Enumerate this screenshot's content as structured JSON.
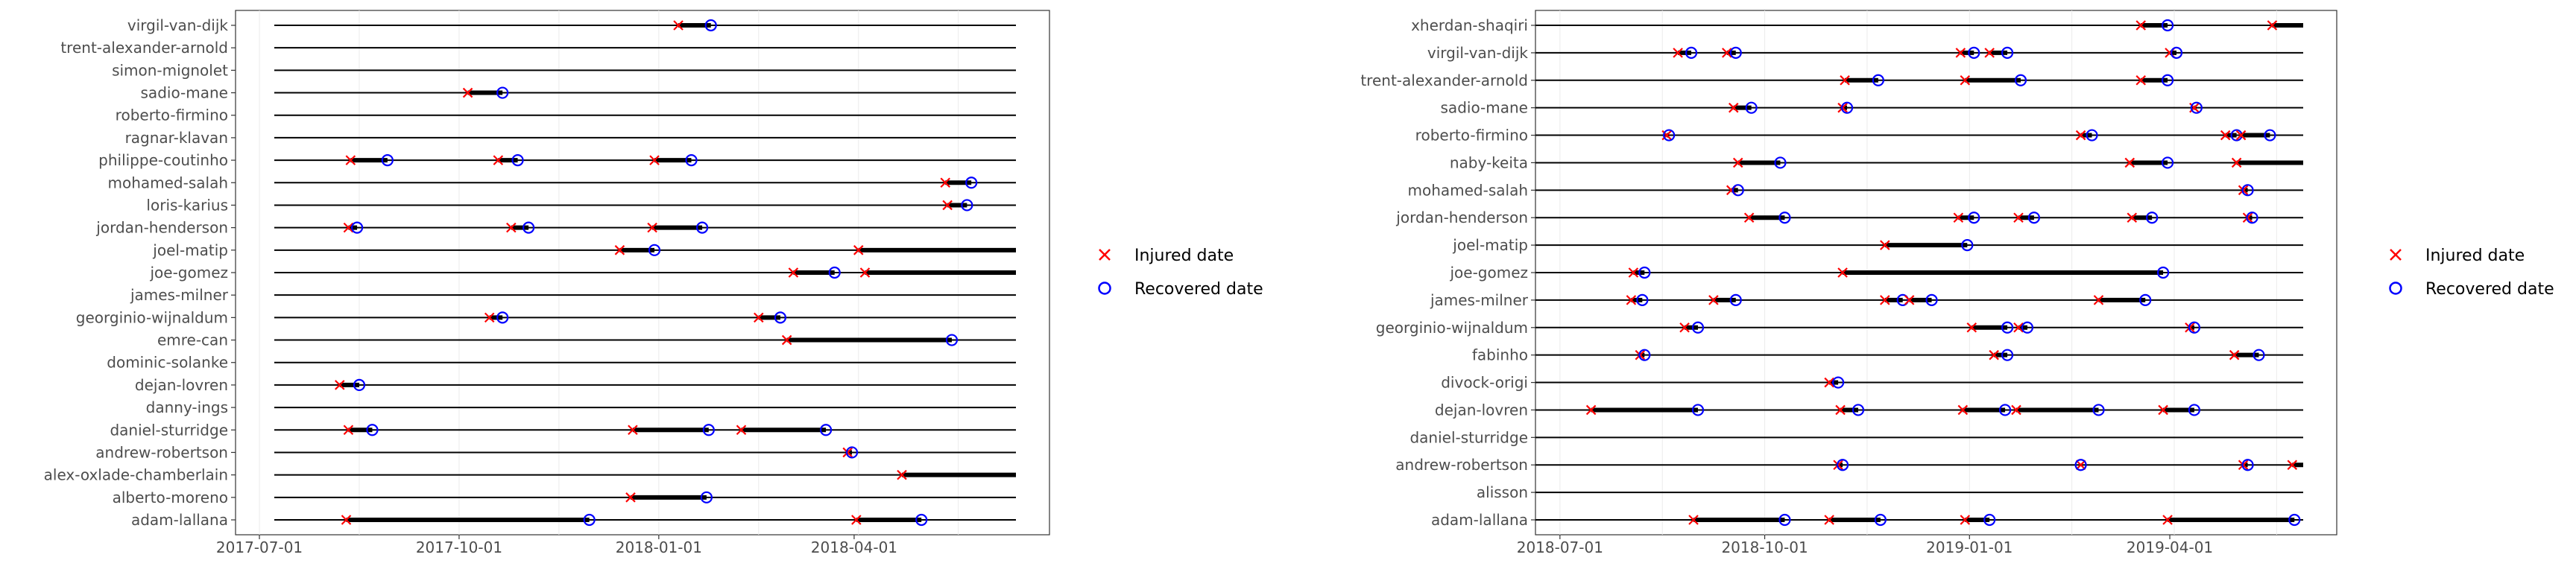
{
  "chart_data": [
    {
      "type": "timeline",
      "xlim": [
        "2017-06-20",
        "2018-06-30"
      ],
      "x_ticks": [
        "2017-07-01",
        "2017-10-01",
        "2018-01-01",
        "2018-04-01"
      ],
      "grid": true,
      "legend_placement": "right",
      "rows": [
        {
          "player": "virgil-van-dijk",
          "injuries": [
            [
              "2018-01-10",
              "2018-01-25"
            ]
          ]
        },
        {
          "player": "trent-alexander-arnold",
          "injuries": []
        },
        {
          "player": "simon-mignolet",
          "injuries": []
        },
        {
          "player": "sadio-mane",
          "injuries": [
            [
              "2017-10-05",
              "2017-10-21"
            ]
          ]
        },
        {
          "player": "roberto-firmino",
          "injuries": []
        },
        {
          "player": "ragnar-klavan",
          "injuries": []
        },
        {
          "player": "philippe-coutinho",
          "injuries": [
            [
              "2017-08-12",
              "2017-08-29"
            ],
            [
              "2017-10-19",
              "2017-10-28"
            ],
            [
              "2017-12-30",
              "2018-01-16"
            ]
          ]
        },
        {
          "player": "mohamed-salah",
          "injuries": [
            [
              "2018-05-13",
              "2018-05-25"
            ]
          ]
        },
        {
          "player": "loris-karius",
          "injuries": [
            [
              "2018-05-14",
              "2018-05-23"
            ]
          ]
        },
        {
          "player": "jordan-henderson",
          "injuries": [
            [
              "2017-08-11",
              "2017-08-15"
            ],
            [
              "2017-10-25",
              "2017-11-02"
            ],
            [
              "2017-12-29",
              "2018-01-21"
            ]
          ]
        },
        {
          "player": "joel-matip",
          "injuries": [
            [
              "2017-12-14",
              "2017-12-30"
            ],
            [
              "2018-04-03",
              "2018-06-30"
            ]
          ]
        },
        {
          "player": "joe-gomez",
          "injuries": [
            [
              "2018-03-04",
              "2018-03-23"
            ],
            [
              "2018-04-06",
              "2018-06-30"
            ]
          ]
        },
        {
          "player": "james-milner",
          "injuries": []
        },
        {
          "player": "georginio-wijnaldum",
          "injuries": [
            [
              "2017-10-15",
              "2017-10-21"
            ],
            [
              "2018-02-16",
              "2018-02-26"
            ]
          ]
        },
        {
          "player": "emre-can",
          "injuries": [
            [
              "2018-03-01",
              "2018-05-16"
            ]
          ]
        },
        {
          "player": "dominic-solanke",
          "injuries": []
        },
        {
          "player": "dejan-lovren",
          "injuries": [
            [
              "2017-08-07",
              "2017-08-16"
            ]
          ]
        },
        {
          "player": "danny-ings",
          "injuries": []
        },
        {
          "player": "daniel-sturridge",
          "injuries": [
            [
              "2017-08-11",
              "2017-08-22"
            ],
            [
              "2017-12-20",
              "2018-01-24"
            ],
            [
              "2018-02-08",
              "2018-03-19"
            ]
          ]
        },
        {
          "player": "andrew-robertson",
          "injuries": [
            [
              "2018-03-29",
              "2018-03-31"
            ]
          ]
        },
        {
          "player": "alex-oxlade-chamberlain",
          "injuries": [
            [
              "2018-04-23",
              "2018-06-30"
            ]
          ]
        },
        {
          "player": "alberto-moreno",
          "injuries": [
            [
              "2017-12-19",
              "2018-01-23"
            ]
          ]
        },
        {
          "player": "adam-lallana",
          "injuries": [
            [
              "2017-08-10",
              "2017-11-30"
            ],
            [
              "2018-04-02",
              "2018-05-02"
            ]
          ]
        }
      ]
    },
    {
      "type": "timeline",
      "xlim": [
        "2018-06-20",
        "2019-06-15"
      ],
      "x_ticks": [
        "2018-07-01",
        "2018-10-01",
        "2019-01-01",
        "2019-04-01"
      ],
      "grid": true,
      "legend_placement": "right",
      "rows": [
        {
          "player": "xherdan-shaqiri",
          "injuries": [
            [
              "2019-03-19",
              "2019-03-31"
            ],
            [
              "2019-05-17",
              "2019-06-15"
            ]
          ]
        },
        {
          "player": "virgil-van-dijk",
          "injuries": [
            [
              "2018-08-23",
              "2018-08-29"
            ],
            [
              "2018-09-14",
              "2018-09-18"
            ],
            [
              "2018-12-28",
              "2019-01-03"
            ],
            [
              "2019-01-10",
              "2019-01-18"
            ],
            [
              "2019-04-01",
              "2019-04-04"
            ]
          ]
        },
        {
          "player": "trent-alexander-arnold",
          "injuries": [
            [
              "2018-11-06",
              "2018-11-21"
            ],
            [
              "2018-12-30",
              "2019-01-24"
            ],
            [
              "2019-03-19",
              "2019-03-31"
            ]
          ]
        },
        {
          "player": "sadio-mane",
          "injuries": [
            [
              "2018-09-17",
              "2018-09-25"
            ],
            [
              "2018-11-05",
              "2018-11-07"
            ],
            [
              "2019-04-12",
              "2019-04-13"
            ]
          ]
        },
        {
          "player": "roberto-firmino",
          "injuries": [
            [
              "2018-08-18",
              "2018-08-19"
            ],
            [
              "2019-02-20",
              "2019-02-25"
            ],
            [
              "2019-04-26",
              "2019-05-01"
            ],
            [
              "2019-05-03",
              "2019-05-16"
            ]
          ]
        },
        {
          "player": "naby-keita",
          "injuries": [
            [
              "2018-09-19",
              "2018-10-08"
            ],
            [
              "2019-03-14",
              "2019-03-31"
            ],
            [
              "2019-05-01",
              "2019-06-20"
            ]
          ]
        },
        {
          "player": "mohamed-salah",
          "injuries": [
            [
              "2018-09-16",
              "2018-09-19"
            ],
            [
              "2019-05-04",
              "2019-05-06"
            ]
          ]
        },
        {
          "player": "jordan-henderson",
          "injuries": [
            [
              "2018-09-24",
              "2018-10-10"
            ],
            [
              "2018-12-27",
              "2019-01-03"
            ],
            [
              "2019-01-23",
              "2019-01-30"
            ],
            [
              "2019-03-15",
              "2019-03-24"
            ],
            [
              "2019-05-06",
              "2019-05-08"
            ]
          ]
        },
        {
          "player": "joel-matip",
          "injuries": [
            [
              "2018-11-24",
              "2018-12-31"
            ]
          ]
        },
        {
          "player": "joe-gomez",
          "injuries": [
            [
              "2018-08-03",
              "2018-08-08"
            ],
            [
              "2018-11-05",
              "2019-03-29"
            ]
          ]
        },
        {
          "player": "james-milner",
          "injuries": [
            [
              "2018-08-02",
              "2018-08-07"
            ],
            [
              "2018-09-08",
              "2018-09-18"
            ],
            [
              "2018-11-24",
              "2018-12-02"
            ],
            [
              "2018-12-05",
              "2018-12-15"
            ],
            [
              "2019-02-28",
              "2019-03-21"
            ]
          ]
        },
        {
          "player": "georginio-wijnaldum",
          "injuries": [
            [
              "2018-08-26",
              "2018-09-01"
            ],
            [
              "2019-01-02",
              "2019-01-18"
            ],
            [
              "2019-01-23",
              "2019-01-27"
            ],
            [
              "2019-04-10",
              "2019-04-12"
            ]
          ]
        },
        {
          "player": "fabinho",
          "injuries": [
            [
              "2018-08-06",
              "2018-08-08"
            ],
            [
              "2019-01-12",
              "2019-01-18"
            ],
            [
              "2019-04-30",
              "2019-05-11"
            ]
          ]
        },
        {
          "player": "divock-origi",
          "injuries": [
            [
              "2018-10-30",
              "2018-11-03"
            ]
          ]
        },
        {
          "player": "dejan-lovren",
          "injuries": [
            [
              "2018-07-15",
              "2018-09-01"
            ],
            [
              "2018-11-04",
              "2018-11-12"
            ],
            [
              "2018-12-29",
              "2019-01-17"
            ],
            [
              "2019-01-22",
              "2019-02-28"
            ],
            [
              "2019-03-29",
              "2019-04-12"
            ]
          ]
        },
        {
          "player": "daniel-sturridge",
          "injuries": []
        },
        {
          "player": "andrew-robertson",
          "injuries": [
            [
              "2018-11-03",
              "2018-11-05"
            ],
            [
              "2019-02-20",
              "2019-02-20"
            ],
            [
              "2019-05-04",
              "2019-05-06"
            ],
            [
              "2019-05-26",
              "2019-06-11"
            ]
          ]
        },
        {
          "player": "alisson",
          "injuries": []
        },
        {
          "player": "adam-lallana",
          "injuries": [
            [
              "2018-08-30",
              "2018-10-10"
            ],
            [
              "2018-10-30",
              "2018-11-22"
            ],
            [
              "2018-12-30",
              "2019-01-10"
            ],
            [
              "2019-03-31",
              "2019-05-27"
            ]
          ]
        }
      ]
    }
  ],
  "legend": {
    "injured_label": "Injured date",
    "recovered_label": "Recovered date"
  },
  "colors": {
    "injured": "#ff0000",
    "recovered": "#0000ff",
    "panel_border": "#333333",
    "grid": "#ebebeb",
    "line": "#000000"
  }
}
